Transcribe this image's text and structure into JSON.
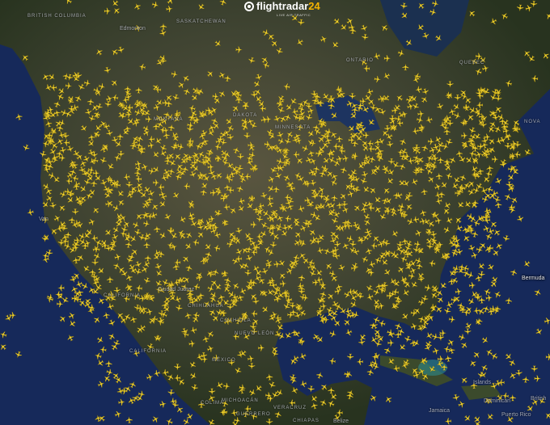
{
  "brand": {
    "name": "flightradar",
    "number": "24",
    "tagline": "LIVE AIR TRAFFIC"
  },
  "colors": {
    "plane": "#f2d22e",
    "ocean": "#16295a",
    "land": "#3b3f2c"
  },
  "icons": {
    "logo": "radar-icon",
    "aircraft": "plane-icon"
  },
  "labels": {
    "british_columbia": "British Columbia",
    "edmonton": "Edmonton",
    "saskatchewan": "Saskatchewan",
    "ontario": "Ontario",
    "quebec": "Quebec",
    "montana": "Montana",
    "dakota": "Dakota",
    "minnesota": "Minnesota",
    "california": "California",
    "ciudad_juarez": "Ciudad Juárez",
    "chihuahua": "Chihuahua",
    "coahuila": "Coahuila",
    "nuevo_leon": "Nuevo León",
    "baja_california": "California",
    "mexico": "México",
    "colima": "Colima",
    "michoacan": "Michoacán",
    "guerrero": "Guerrero",
    "veracruz": "Veracruz",
    "chiapas": "Chiapas",
    "belize": "Belize",
    "jamaica": "Jamaica",
    "puerto_rico": "Puerto Rico",
    "british_virgin": "British",
    "bermuda": "Bermuda",
    "islands": "Islands",
    "dominican": "Dominican",
    "vancouver": "Van",
    "nova_scotia": "Nova"
  }
}
